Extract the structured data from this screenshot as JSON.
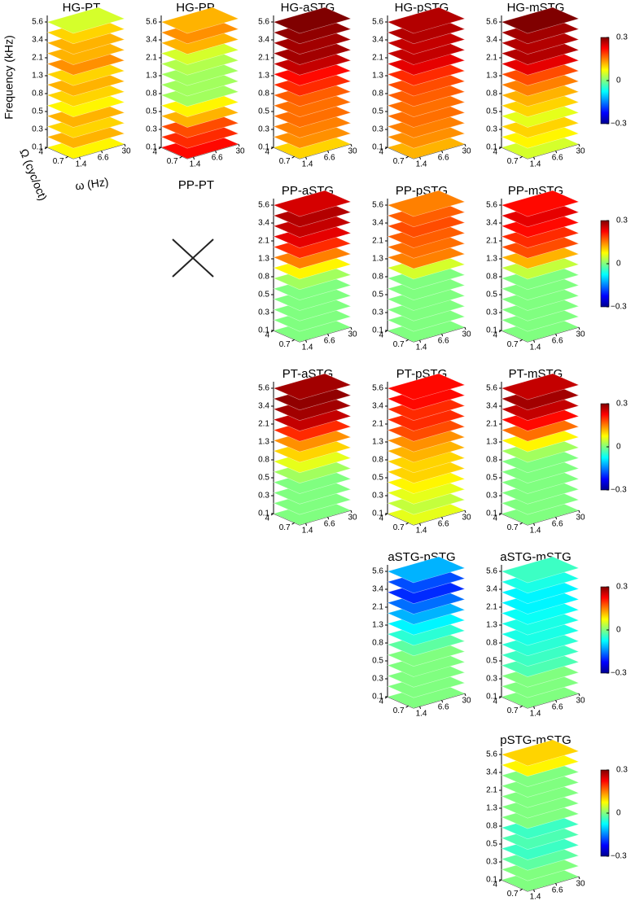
{
  "chart_data": {
    "type": "stacked-slices",
    "ylabel": "Frequency (kHz)",
    "omega_label": "Ω (cyc/oct)",
    "rate_label": "ω (Hz)",
    "yticks": [
      0.1,
      0.3,
      0.5,
      0.8,
      1.3,
      2.1,
      3.4,
      5.6
    ],
    "omega_ticks": [
      4,
      0.7
    ],
    "rate_ticks": [
      1.4,
      6.6,
      30
    ],
    "clim": [
      -0.3,
      0.3
    ],
    "cticks": [
      0.3,
      0,
      {
        "value": -0.3,
        "label": "−0.3"
      }
    ],
    "empty_title": "PP-PT",
    "panels": [
      {
        "title": "HG-PT",
        "values": [
          0.08,
          0.12,
          0.1,
          0.12,
          0.08,
          0.1,
          0.12,
          0.1,
          0.14,
          0.12,
          0.12,
          0.1,
          0.05
        ]
      },
      {
        "title": "HG-PP",
        "values": [
          0.22,
          0.2,
          0.18,
          0.12,
          0.08,
          0.02,
          0.02,
          0.02,
          0.03,
          0.05,
          0.12,
          0.14,
          0.12
        ]
      },
      {
        "title": "HG-aSTG",
        "values": [
          0.1,
          0.14,
          0.15,
          0.16,
          0.16,
          0.17,
          0.2,
          0.22,
          0.26,
          0.28,
          0.28,
          0.29,
          0.3
        ]
      },
      {
        "title": "HG-pSTG",
        "values": [
          0.12,
          0.14,
          0.15,
          0.16,
          0.16,
          0.17,
          0.18,
          0.2,
          0.24,
          0.26,
          0.26,
          0.27,
          0.27
        ]
      },
      {
        "title": "HG-mSTG",
        "values": [
          0.05,
          0.08,
          0.1,
          0.06,
          0.1,
          0.12,
          0.15,
          0.18,
          0.24,
          0.27,
          0.27,
          0.28,
          0.3
        ]
      },
      {
        "title": "PP-aSTG",
        "values": [
          0,
          0,
          0,
          0,
          0,
          0.02,
          0.08,
          0.15,
          0.2,
          0.24,
          0.26,
          0.27,
          0.25
        ]
      },
      {
        "title": "PP-pSTG",
        "values": [
          0,
          0,
          0,
          0,
          0,
          0,
          0.05,
          0.15,
          0.16,
          0.17,
          0.18,
          0.17,
          0.15
        ]
      },
      {
        "title": "PP-mSTG",
        "values": [
          0,
          0,
          0,
          0,
          0,
          0,
          0.04,
          0.12,
          0.18,
          0.2,
          0.22,
          0.24,
          0.22
        ]
      },
      {
        "title": "PT-aSTG",
        "values": [
          0,
          0,
          0,
          0,
          0.02,
          0.06,
          0.1,
          0.14,
          0.2,
          0.26,
          0.28,
          0.29,
          0.28
        ]
      },
      {
        "title": "PT-pSTG",
        "values": [
          0.06,
          0.04,
          0.06,
          0.08,
          0.1,
          0.1,
          0.12,
          0.14,
          0.18,
          0.2,
          0.2,
          0.22,
          0.22
        ]
      },
      {
        "title": "PT-mSTG",
        "values": [
          0,
          0,
          0,
          0,
          0,
          0,
          0.02,
          0.08,
          0.16,
          0.22,
          0.26,
          0.28,
          0.26
        ]
      },
      {
        "title": "aSTG-pSTG",
        "values": [
          0,
          0,
          0,
          0,
          0,
          -0.02,
          -0.05,
          -0.08,
          -0.12,
          -0.16,
          -0.2,
          -0.18,
          -0.12
        ]
      },
      {
        "title": "aSTG-mSTG",
        "values": [
          0,
          0,
          0,
          -0.03,
          -0.04,
          -0.05,
          -0.06,
          -0.06,
          -0.07,
          -0.08,
          -0.08,
          -0.06,
          -0.04
        ]
      },
      {
        "title": "pSTG-mSTG",
        "values": [
          0,
          0,
          -0.02,
          -0.04,
          -0.03,
          -0.04,
          0,
          0,
          0,
          0,
          0,
          0.08,
          0.1
        ]
      }
    ]
  }
}
